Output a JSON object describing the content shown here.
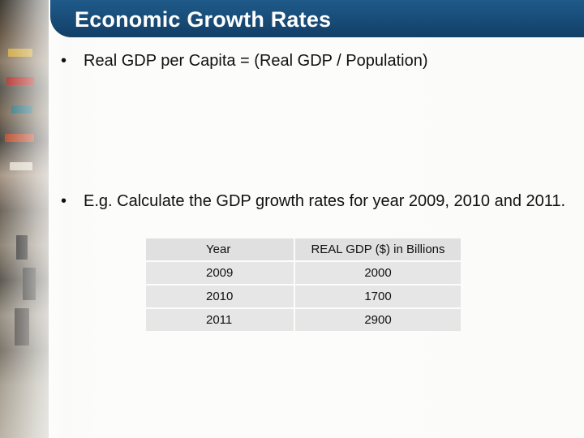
{
  "slide": {
    "title": "Economic Growth Rates",
    "bullets": [
      {
        "marker": "•",
        "text": "Real GDP per Capita = (Real GDP / Population)"
      },
      {
        "marker": "•",
        "text": "E.g. Calculate the GDP growth rates for year 2009, 2010 and 2011."
      }
    ],
    "table": {
      "headers": [
        "Year",
        "REAL GDP ($) in Billions"
      ],
      "rows": [
        [
          "2009",
          "2000"
        ],
        [
          "2010",
          "1700"
        ],
        [
          "2011",
          "2900"
        ]
      ]
    }
  },
  "colors": {
    "title_bar": "#174a75",
    "title_text": "#ffffff",
    "table_cell": "#e6e6e6"
  }
}
